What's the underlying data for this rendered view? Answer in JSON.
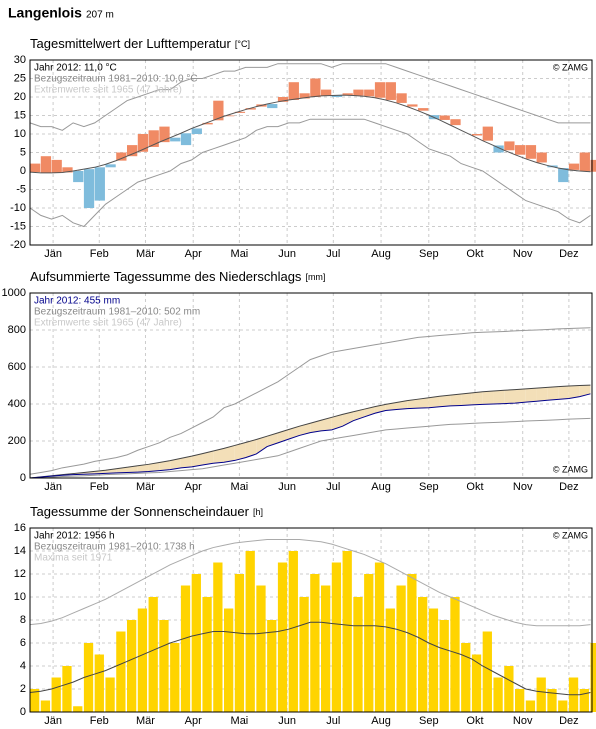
{
  "header": {
    "station": "Langenlois",
    "elevation": "207 m"
  },
  "chart_data": [
    {
      "type": "anomaly",
      "title": "Tagesmittelwert der Lufttemperatur",
      "unit": "[°C]",
      "copyright": "© ZAMG",
      "copyright_corner": "top-right",
      "grid": true,
      "xlim": [
        1,
        366
      ],
      "xticks": [
        {
          "value": 16,
          "label": "Jän"
        },
        {
          "value": 46,
          "label": "Feb"
        },
        {
          "value": 76,
          "label": "Mär"
        },
        {
          "value": 107,
          "label": "Apr"
        },
        {
          "value": 137,
          "label": "Mai"
        },
        {
          "value": 168,
          "label": "Jun"
        },
        {
          "value": 198,
          "label": "Jul"
        },
        {
          "value": 229,
          "label": "Aug"
        },
        {
          "value": 260,
          "label": "Sep"
        },
        {
          "value": 290,
          "label": "Okt"
        },
        {
          "value": 321,
          "label": "Nov"
        },
        {
          "value": 351,
          "label": "Dez"
        }
      ],
      "ylim": [
        -20,
        30
      ],
      "yticks": [
        -20,
        -15,
        -10,
        -5,
        0,
        5,
        10,
        15,
        20,
        25,
        30
      ],
      "x": [
        1,
        8,
        15,
        22,
        29,
        36,
        43,
        50,
        57,
        64,
        71,
        78,
        85,
        92,
        99,
        106,
        113,
        120,
        127,
        134,
        141,
        148,
        155,
        162,
        169,
        176,
        183,
        190,
        197,
        204,
        211,
        218,
        225,
        232,
        239,
        246,
        253,
        260,
        267,
        274,
        281,
        288,
        295,
        302,
        309,
        316,
        323,
        330,
        337,
        344,
        351,
        358,
        365
      ],
      "series": [
        {
          "name": "Jahr 2012: 11,0 °C",
          "color": "#000000",
          "above_color": "#f08a64",
          "below_color": "#7fbcdc",
          "values": [
            2,
            4,
            3,
            1,
            -3,
            -10,
            -8,
            1,
            5,
            7,
            10,
            11,
            12,
            8,
            7,
            10,
            13,
            19,
            15,
            16,
            17,
            18,
            17,
            20,
            24,
            21,
            25,
            22,
            20,
            21,
            22,
            22,
            24,
            24,
            21,
            18,
            17,
            14,
            15,
            14,
            11,
            10,
            12,
            5,
            8,
            7,
            7,
            5,
            1,
            -3,
            2,
            5,
            3
          ]
        },
        {
          "name": "Bezugszeitraum 1981–2010: 10,0 °C",
          "color": "#555555",
          "label_color": "#888888",
          "values": [
            -0.3,
            -0.5,
            -0.5,
            -0.4,
            0,
            0.5,
            1,
            1.8,
            2.8,
            4,
            5.2,
            6.5,
            7.8,
            9,
            10.2,
            11.5,
            12.6,
            13.7,
            14.8,
            15.7,
            16.6,
            17.4,
            18.1,
            18.7,
            19.2,
            19.6,
            20,
            20.3,
            20.4,
            20.5,
            20.4,
            20.2,
            19.8,
            19.2,
            18.4,
            17.4,
            16.3,
            15.1,
            13.8,
            12.4,
            11,
            9.6,
            8.2,
            6.9,
            5.6,
            4.4,
            3.3,
            2.3,
            1.5,
            0.8,
            0.3,
            0,
            -0.2
          ]
        },
        {
          "name": "Extremwerte seit 1965 (47 Jahre)",
          "color": "#999999",
          "label_color": "#c8c8c8",
          "values": [
            13,
            12,
            12,
            11,
            13,
            12,
            13,
            15,
            17,
            19,
            20,
            21,
            22,
            22,
            24,
            25,
            25,
            26,
            27,
            27,
            28,
            28,
            28,
            29,
            29,
            29,
            29,
            29,
            28,
            29,
            29,
            29,
            29,
            29,
            28,
            27,
            26,
            25,
            24,
            23,
            22,
            21,
            20,
            19,
            18,
            17,
            16,
            15,
            14,
            13,
            13,
            13,
            13
          ],
          "lower": [
            -10,
            -12,
            -13,
            -12,
            -14,
            -15,
            -12,
            -9,
            -7,
            -5,
            -3,
            -2,
            -1,
            0,
            2,
            3,
            5,
            6,
            7,
            8,
            9,
            11,
            12,
            12,
            13,
            13,
            14,
            14,
            14,
            14,
            14,
            14,
            13,
            12,
            11,
            10,
            8,
            6,
            5,
            4,
            2,
            1,
            0,
            -2,
            -4,
            -6,
            -8,
            -9,
            -10,
            -11,
            -13,
            -14,
            -12
          ]
        }
      ]
    },
    {
      "type": "cumulative",
      "title": "Aufsummierte Tagessumme des Niederschlags",
      "unit": "[mm]",
      "copyright": "© ZAMG",
      "copyright_corner": "bottom-right",
      "grid": true,
      "xlim": [
        1,
        366
      ],
      "xticks": [
        {
          "value": 16,
          "label": "Jän"
        },
        {
          "value": 46,
          "label": "Feb"
        },
        {
          "value": 76,
          "label": "Mär"
        },
        {
          "value": 107,
          "label": "Apr"
        },
        {
          "value": 137,
          "label": "Mai"
        },
        {
          "value": 168,
          "label": "Jun"
        },
        {
          "value": 198,
          "label": "Jul"
        },
        {
          "value": 229,
          "label": "Aug"
        },
        {
          "value": 260,
          "label": "Sep"
        },
        {
          "value": 290,
          "label": "Okt"
        },
        {
          "value": 321,
          "label": "Nov"
        },
        {
          "value": 351,
          "label": "Dez"
        }
      ],
      "ylim": [
        0,
        1000
      ],
      "yticks": [
        0,
        200,
        400,
        600,
        800,
        1000
      ],
      "x": [
        1,
        8,
        15,
        22,
        29,
        36,
        43,
        50,
        57,
        64,
        71,
        78,
        85,
        92,
        99,
        106,
        113,
        120,
        127,
        134,
        141,
        148,
        155,
        162,
        169,
        176,
        183,
        190,
        197,
        204,
        211,
        218,
        225,
        232,
        239,
        246,
        253,
        260,
        267,
        274,
        281,
        288,
        295,
        302,
        309,
        316,
        323,
        330,
        337,
        344,
        351,
        358,
        365
      ],
      "series": [
        {
          "name": "Jahr 2012: 455 mm",
          "color": "#00008b",
          "above_color": "#b4d2ee",
          "below_color": "#f3dfb8",
          "values": [
            0,
            5,
            10,
            15,
            18,
            20,
            22,
            25,
            28,
            30,
            32,
            35,
            40,
            45,
            55,
            60,
            70,
            80,
            85,
            95,
            110,
            130,
            170,
            190,
            210,
            230,
            245,
            255,
            260,
            280,
            310,
            330,
            350,
            365,
            370,
            375,
            378,
            380,
            385,
            390,
            392,
            395,
            398,
            400,
            402,
            405,
            410,
            415,
            420,
            425,
            430,
            440,
            455
          ]
        },
        {
          "name": "Bezugszeitraum 1981–2010: 502 mm",
          "color": "#444444",
          "label_color": "#888888",
          "values": [
            0,
            6,
            12,
            18,
            24,
            30,
            36,
            42,
            50,
            58,
            66,
            74,
            84,
            94,
            106,
            118,
            132,
            146,
            160,
            176,
            192,
            208,
            226,
            244,
            262,
            280,
            296,
            312,
            328,
            344,
            358,
            372,
            386,
            398,
            408,
            418,
            426,
            434,
            442,
            448,
            454,
            460,
            466,
            470,
            474,
            478,
            482,
            486,
            490,
            494,
            497,
            500,
            502
          ]
        },
        {
          "name": "Extremwerte seit 1965 (47 Jahre)",
          "color": "#999999",
          "label_color": "#c8c8c8",
          "values": [
            20,
            30,
            40,
            55,
            65,
            75,
            90,
            100,
            110,
            125,
            150,
            170,
            190,
            220,
            240,
            270,
            300,
            330,
            380,
            400,
            430,
            460,
            490,
            520,
            560,
            600,
            640,
            660,
            680,
            690,
            700,
            710,
            720,
            730,
            740,
            750,
            760,
            765,
            770,
            775,
            780,
            785,
            788,
            790,
            792,
            795,
            798,
            800,
            803,
            806,
            808,
            810,
            812
          ],
          "lower": [
            0,
            2,
            5,
            8,
            10,
            12,
            15,
            18,
            20,
            22,
            25,
            28,
            30,
            35,
            40,
            45,
            50,
            60,
            70,
            80,
            90,
            100,
            110,
            120,
            140,
            160,
            180,
            200,
            210,
            220,
            230,
            240,
            250,
            260,
            265,
            270,
            275,
            280,
            285,
            290,
            292,
            295,
            298,
            300,
            302,
            305,
            308,
            310,
            312,
            315,
            318,
            320,
            322
          ]
        }
      ]
    },
    {
      "type": "bar",
      "title": "Tagessumme der Sonnenscheindauer",
      "unit": "[h]",
      "copyright": "© ZAMG",
      "copyright_corner": "top-right",
      "grid": true,
      "xlim": [
        1,
        366
      ],
      "xticks": [
        {
          "value": 16,
          "label": "Jän"
        },
        {
          "value": 46,
          "label": "Feb"
        },
        {
          "value": 76,
          "label": "Mär"
        },
        {
          "value": 107,
          "label": "Apr"
        },
        {
          "value": 137,
          "label": "Mai"
        },
        {
          "value": 168,
          "label": "Jun"
        },
        {
          "value": 198,
          "label": "Jul"
        },
        {
          "value": 229,
          "label": "Aug"
        },
        {
          "value": 260,
          "label": "Sep"
        },
        {
          "value": 290,
          "label": "Okt"
        },
        {
          "value": 321,
          "label": "Nov"
        },
        {
          "value": 351,
          "label": "Dez"
        }
      ],
      "ylim": [
        0,
        16
      ],
      "yticks": [
        0,
        2,
        4,
        6,
        8,
        10,
        12,
        14,
        16
      ],
      "x": [
        1,
        8,
        15,
        22,
        29,
        36,
        43,
        50,
        57,
        64,
        71,
        78,
        85,
        92,
        99,
        106,
        113,
        120,
        127,
        134,
        141,
        148,
        155,
        162,
        169,
        176,
        183,
        190,
        197,
        204,
        211,
        218,
        225,
        232,
        239,
        246,
        253,
        260,
        267,
        274,
        281,
        288,
        295,
        302,
        309,
        316,
        323,
        330,
        337,
        344,
        351,
        358,
        365
      ],
      "series": [
        {
          "name": "Jahr 2012: 1956 h",
          "color": "#ffd400",
          "label_color": "#000000",
          "values": [
            2,
            1,
            3,
            4,
            0.5,
            6,
            5,
            3,
            7,
            8,
            9,
            10,
            8,
            6,
            11,
            12,
            10,
            13,
            9,
            12,
            14,
            11,
            8,
            13,
            14,
            10,
            12,
            11,
            13,
            14,
            10,
            12,
            13,
            9,
            11,
            12,
            10,
            9,
            8,
            10,
            6,
            5,
            7,
            3,
            4,
            2,
            1,
            3,
            2,
            1,
            3,
            2,
            6
          ]
        },
        {
          "name": "Bezugszeitraum 1981–2010: 1738 h",
          "color": "#444444",
          "label_color": "#888888",
          "values": [
            1.7,
            1.8,
            2,
            2.3,
            2.6,
            3,
            3.3,
            3.6,
            4,
            4.4,
            4.8,
            5.2,
            5.6,
            6,
            6.3,
            6.6,
            6.8,
            7,
            7,
            6.9,
            6.8,
            6.8,
            6.9,
            7,
            7.2,
            7.5,
            7.8,
            7.8,
            7.7,
            7.6,
            7.5,
            7.5,
            7.5,
            7.4,
            7.2,
            6.9,
            6.5,
            6,
            5.6,
            5.3,
            5,
            4.6,
            4,
            3.5,
            3,
            2.5,
            2,
            1.8,
            1.7,
            1.6,
            1.5,
            1.5,
            1.7
          ]
        },
        {
          "name": "Maxima seit 1971",
          "color": "#aaaaaa",
          "label_color": "#c8c8c8",
          "values": [
            7.6,
            7.7,
            7.9,
            8.2,
            8.6,
            9,
            9.4,
            9.8,
            10.3,
            10.8,
            11.3,
            11.8,
            12.3,
            12.8,
            13.2,
            13.6,
            14,
            14.3,
            14.5,
            14.7,
            14.8,
            14.9,
            15,
            15,
            15,
            15,
            14.9,
            14.8,
            14.6,
            14.3,
            14,
            13.7,
            13.3,
            12.9,
            12.4,
            11.9,
            11.4,
            10.9,
            10.4,
            10,
            9.6,
            9.2,
            8.8,
            8.4,
            8.1,
            7.8,
            7.6,
            7.5,
            7.5,
            7.5,
            7.5,
            7.5,
            7.6
          ]
        }
      ]
    }
  ]
}
